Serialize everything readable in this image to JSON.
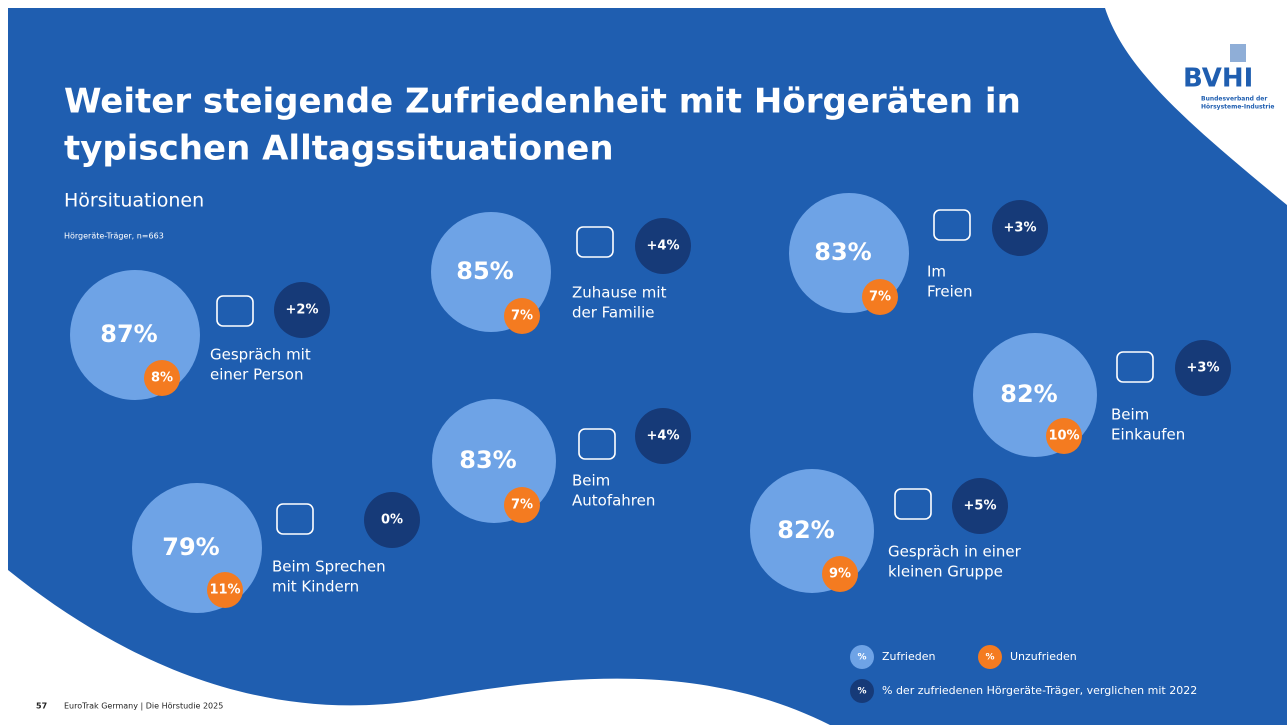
{
  "header": {
    "title_lines": [
      "Weiter steigende Zufriedenheit mit Hörgeräten in",
      "typischen Alltagssituationen"
    ],
    "subtitle": "Hörsituationen",
    "note": "Hörgeräte-Träger, n=663"
  },
  "logo": {
    "name": "BVHI",
    "lines": [
      "Bundesverband der",
      "Hörsysteme-Industrie"
    ]
  },
  "situations": [
    {
      "label_lines": [
        "Gespräch mit",
        "einer Person"
      ],
      "satisfied": "87%",
      "dissatisfied": "8%",
      "change": "+2%"
    },
    {
      "label_lines": [
        "Zuhause mit",
        "der Familie"
      ],
      "satisfied": "85%",
      "dissatisfied": "7%",
      "change": "+4%"
    },
    {
      "label_lines": [
        "Im",
        "Freien"
      ],
      "satisfied": "83%",
      "dissatisfied": "7%",
      "change": "+3%"
    },
    {
      "label_lines": [
        "Beim",
        "Einkaufen"
      ],
      "satisfied": "82%",
      "dissatisfied": "10%",
      "change": "+3%"
    },
    {
      "label_lines": [
        "Beim",
        "Autofahren"
      ],
      "satisfied": "83%",
      "dissatisfied": "7%",
      "change": "+4%"
    },
    {
      "label_lines": [
        "Beim Sprechen",
        "mit Kindern"
      ],
      "satisfied": "79%",
      "dissatisfied": "11%",
      "change": "0%"
    },
    {
      "label_lines": [
        "Gespräch in einer",
        "kleinen Gruppe"
      ],
      "satisfied": "82%",
      "dissatisfied": "9%",
      "change": "+5%"
    }
  ],
  "legend": {
    "symbol": "%",
    "satisfied": "Zufrieden",
    "dissatisfied": "Unzufrieden",
    "change": "% der zufriedenen Hörgeräte-Träger, verglichen mit 2022"
  },
  "footer": {
    "page": "57",
    "source": "EuroTrak Germany | Die Hörstudie 2025"
  }
}
